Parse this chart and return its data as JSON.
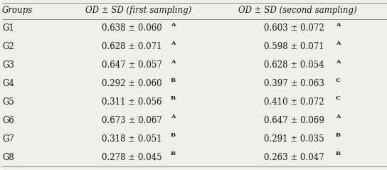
{
  "headers": [
    "Groups",
    "OD ± SD (first sampling)",
    "OD ± SD (second sampling)"
  ],
  "groups": [
    "G1",
    "G2",
    "G3",
    "G4",
    "G5",
    "G6",
    "G7",
    "G8"
  ],
  "first_sampling": [
    {
      "mean": "0.638",
      "sd": "0.060",
      "letter": "A"
    },
    {
      "mean": "0.628",
      "sd": "0.071",
      "letter": "A"
    },
    {
      "mean": "0.647",
      "sd": "0.057",
      "letter": "A"
    },
    {
      "mean": "0.292",
      "sd": "0.060",
      "letter": "B"
    },
    {
      "mean": "0.311",
      "sd": "0.056",
      "letter": "B"
    },
    {
      "mean": "0.673",
      "sd": "0.067",
      "letter": "A"
    },
    {
      "mean": "0.318",
      "sd": "0.051",
      "letter": "B"
    },
    {
      "mean": "0.278",
      "sd": "0.045",
      "letter": "B"
    }
  ],
  "second_sampling": [
    {
      "mean": "0.603",
      "sd": "0.072",
      "letter": "A"
    },
    {
      "mean": "0.598",
      "sd": "0.071",
      "letter": "A"
    },
    {
      "mean": "0.628",
      "sd": "0.054",
      "letter": "A"
    },
    {
      "mean": "0.397",
      "sd": "0.063",
      "letter": "C"
    },
    {
      "mean": "0.410",
      "sd": "0.072",
      "letter": "C"
    },
    {
      "mean": "0.647",
      "sd": "0.069",
      "letter": "A"
    },
    {
      "mean": "0.291",
      "sd": "0.035",
      "letter": "B"
    },
    {
      "mean": "0.263",
      "sd": "0.047",
      "letter": "B"
    }
  ],
  "bg_color": "#f0efea",
  "text_color": "#1a1a1a",
  "header_fontsize": 8.5,
  "data_fontsize": 8.5,
  "letter_fontsize": 6.0,
  "line_color": "#888888"
}
